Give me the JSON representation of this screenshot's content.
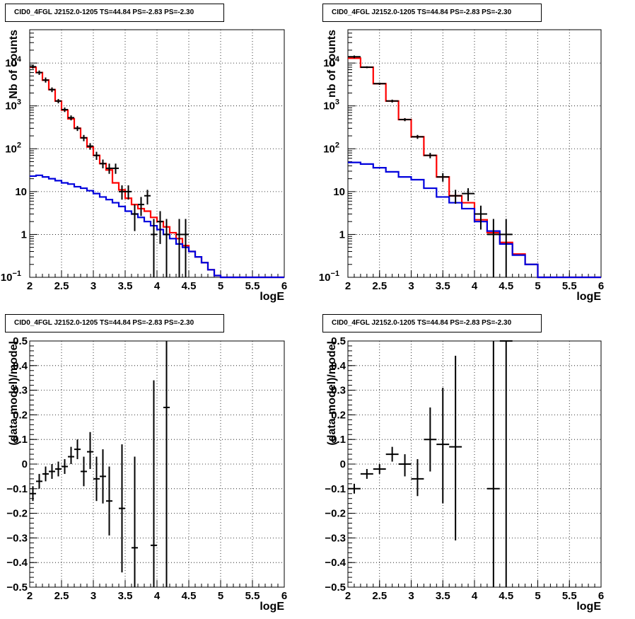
{
  "chart_data": [
    {
      "type": "histogram",
      "title": "CID0_4FGL J2152.0-1205 TS=44.84 PS=-2.83 PS=-2.30",
      "xlabel": "logE",
      "ylabel": "Nb of counts",
      "xlim": [
        2,
        6
      ],
      "ylim": [
        0.1,
        60000
      ],
      "yscale": "log",
      "grid": true,
      "x_ticks": [
        "2",
        "2.5",
        "3",
        "3.5",
        "4",
        "4.5",
        "5",
        "5.5",
        "6"
      ],
      "y_ticks": [
        {
          "value": 0.1,
          "label": "10",
          "exp": "−1"
        },
        {
          "value": 1,
          "label": "1"
        },
        {
          "value": 10,
          "label": "10"
        },
        {
          "value": 100,
          "label": "10",
          "exp": "2"
        },
        {
          "value": 1000,
          "label": "10",
          "exp": "3"
        },
        {
          "value": 10000,
          "label": "10",
          "exp": "4"
        }
      ],
      "bin_edges": [
        2.0,
        2.1,
        2.2,
        2.3,
        2.4,
        2.5,
        2.6,
        2.7,
        2.8,
        2.9,
        3.0,
        3.1,
        3.2,
        3.3,
        3.4,
        3.5,
        3.6,
        3.7,
        3.8,
        3.9,
        4.0,
        4.1,
        4.2,
        4.3,
        4.4,
        4.5,
        4.6,
        4.7,
        4.8,
        4.9,
        5.0,
        5.1,
        5.2,
        5.3,
        5.4,
        5.5,
        5.6,
        5.7,
        5.8,
        5.9,
        6.0
      ],
      "series": [
        {
          "name": "",
          "color": "#ff0000",
          "style": "step",
          "values": [
            8000,
            6000,
            4000,
            2400,
            1300,
            800,
            500,
            300,
            180,
            110,
            70,
            45,
            32,
            16,
            11,
            7,
            5,
            4,
            3.5,
            2.5,
            2,
            1.5,
            1.1,
            0.8,
            0.55,
            0.4,
            0.3,
            0.22,
            0.15,
            0.11,
            0.08,
            0.08,
            0.08,
            0.08,
            0.08,
            0.08,
            0.08,
            0.08,
            0.08,
            0.08
          ]
        },
        {
          "name": "",
          "color": "#0000dd",
          "style": "step",
          "values": [
            23,
            24,
            22,
            20,
            18,
            16,
            15,
            13,
            12,
            10.5,
            9,
            7.5,
            6.5,
            5.5,
            4.5,
            3.5,
            3,
            2.5,
            2,
            1.6,
            1.3,
            1.0,
            0.8,
            0.6,
            0.5,
            0.4,
            0.3,
            0.22,
            0.15,
            0.11,
            0.08,
            0.08,
            0.08,
            0.08,
            0.08,
            0.08,
            0.08,
            0.08,
            0.08,
            0.08
          ]
        },
        {
          "name": "",
          "color": "#000000",
          "style": "points",
          "points": [
            {
              "x": 2.05,
              "y": 8200,
              "lo": 7400,
              "hi": 9000
            },
            {
              "x": 2.15,
              "y": 6000,
              "lo": 5300,
              "hi": 6700
            },
            {
              "x": 2.25,
              "y": 4000,
              "lo": 3500,
              "hi": 4600
            },
            {
              "x": 2.35,
              "y": 2400,
              "lo": 2100,
              "hi": 2700
            },
            {
              "x": 2.45,
              "y": 1300,
              "lo": 1150,
              "hi": 1450
            },
            {
              "x": 2.55,
              "y": 820,
              "lo": 720,
              "hi": 920
            },
            {
              "x": 2.65,
              "y": 530,
              "lo": 460,
              "hi": 600
            },
            {
              "x": 2.75,
              "y": 300,
              "lo": 260,
              "hi": 340
            },
            {
              "x": 2.85,
              "y": 180,
              "lo": 150,
              "hi": 210
            },
            {
              "x": 2.95,
              "y": 115,
              "lo": 95,
              "hi": 135
            },
            {
              "x": 3.05,
              "y": 70,
              "lo": 55,
              "hi": 85
            },
            {
              "x": 3.15,
              "y": 45,
              "lo": 35,
              "hi": 56
            },
            {
              "x": 3.25,
              "y": 35,
              "lo": 26,
              "hi": 45
            },
            {
              "x": 3.35,
              "y": 35,
              "lo": 26,
              "hi": 45
            },
            {
              "x": 3.45,
              "y": 10,
              "lo": 6.5,
              "hi": 14
            },
            {
              "x": 3.55,
              "y": 10,
              "lo": 6.5,
              "hi": 14
            },
            {
              "x": 3.65,
              "y": 3,
              "lo": 1.2,
              "hi": 5
            },
            {
              "x": 3.75,
              "y": 5,
              "lo": 2.7,
              "hi": 7.5
            },
            {
              "x": 3.85,
              "y": 8,
              "lo": 5,
              "hi": 11
            },
            {
              "x": 3.95,
              "y": 1,
              "lo": 0.1,
              "hi": 2.3
            },
            {
              "x": 4.05,
              "y": 2,
              "lo": 0.6,
              "hi": 3.5
            },
            {
              "x": 4.15,
              "y": 1,
              "lo": 0.1,
              "hi": 2.3
            },
            {
              "x": 4.35,
              "y": 1,
              "lo": 0.1,
              "hi": 2.3
            },
            {
              "x": 4.45,
              "y": 1,
              "lo": 0.1,
              "hi": 2.3
            }
          ]
        }
      ]
    },
    {
      "type": "histogram",
      "title": "CID0_4FGL J2152.0-1205 TS=44.84 PS=-2.83 PS=-2.30",
      "xlabel": "logE",
      "ylabel": "nb of counts",
      "xlim": [
        2,
        6
      ],
      "ylim": [
        0.1,
        60000
      ],
      "yscale": "log",
      "grid": true,
      "x_ticks": [
        "2",
        "2.5",
        "3",
        "3.5",
        "4",
        "4.5",
        "5",
        "5.5",
        "6"
      ],
      "y_ticks": [
        {
          "value": 0.1,
          "label": "10",
          "exp": "−1"
        },
        {
          "value": 1,
          "label": "1"
        },
        {
          "value": 10,
          "label": "10"
        },
        {
          "value": 100,
          "label": "10",
          "exp": "2"
        },
        {
          "value": 1000,
          "label": "10",
          "exp": "3"
        },
        {
          "value": 10000,
          "label": "10",
          "exp": "4"
        }
      ],
      "bin_edges": [
        2.0,
        2.2,
        2.4,
        2.6,
        2.8,
        3.0,
        3.2,
        3.4,
        3.6,
        3.8,
        4.0,
        4.2,
        4.4,
        4.6,
        4.8,
        5.0,
        5.2,
        5.4,
        5.6,
        5.8,
        6.0
      ],
      "series": [
        {
          "name": "",
          "color": "#ff0000",
          "style": "step",
          "values": [
            13000,
            8000,
            3300,
            1300,
            480,
            190,
            70,
            22,
            8,
            5.5,
            2.2,
            1.1,
            0.65,
            0.35,
            0.2,
            0.09,
            0.09,
            0.09,
            0.09,
            0.09
          ]
        },
        {
          "name": "",
          "color": "#0000dd",
          "style": "step",
          "values": [
            48,
            44,
            36,
            29,
            22,
            19,
            12,
            7.5,
            5.5,
            4,
            2,
            1.2,
            0.6,
            0.33,
            0.2,
            0.09,
            0.09,
            0.09,
            0.09,
            0.09
          ]
        },
        {
          "name": "",
          "color": "#000000",
          "style": "points",
          "points": [
            {
              "x": 2.1,
              "y": 14000,
              "lo": 13000,
              "hi": 15000
            },
            {
              "x": 2.3,
              "y": 8000,
              "lo": 7600,
              "hi": 8400
            },
            {
              "x": 2.5,
              "y": 3300,
              "lo": 3100,
              "hi": 3500
            },
            {
              "x": 2.7,
              "y": 1300,
              "lo": 1200,
              "hi": 1400
            },
            {
              "x": 2.9,
              "y": 480,
              "lo": 440,
              "hi": 520
            },
            {
              "x": 3.1,
              "y": 190,
              "lo": 170,
              "hi": 210
            },
            {
              "x": 3.3,
              "y": 70,
              "lo": 60,
              "hi": 80
            },
            {
              "x": 3.5,
              "y": 22,
              "lo": 17,
              "hi": 27
            },
            {
              "x": 3.7,
              "y": 8,
              "lo": 5.2,
              "hi": 11
            },
            {
              "x": 3.9,
              "y": 9,
              "lo": 6,
              "hi": 12
            },
            {
              "x": 4.1,
              "y": 3,
              "lo": 1.3,
              "hi": 4.7
            },
            {
              "x": 4.3,
              "y": 1,
              "lo": 0.1,
              "hi": 2.3
            },
            {
              "x": 4.5,
              "y": 1,
              "lo": 0.1,
              "hi": 2.3
            }
          ]
        }
      ]
    },
    {
      "type": "scatter",
      "title": "CID0_4FGL J2152.0-1205 TS=44.84 PS=-2.83 PS=-2.30",
      "xlabel": "logE",
      "ylabel": "(data-model)/model",
      "xlim": [
        2,
        6
      ],
      "ylim": [
        -0.5,
        0.5
      ],
      "yscale": "linear",
      "grid": true,
      "x_ticks": [
        "2",
        "2.5",
        "3",
        "3.5",
        "4",
        "4.5",
        "5",
        "5.5",
        "6"
      ],
      "y_ticks": [
        "−0.5",
        "−0.4",
        "−0.3",
        "−0.2",
        "−0.1",
        "0",
        "0.1",
        "0.2",
        "0.3",
        "0.4",
        "0.5"
      ],
      "xerr": 0.05,
      "points": [
        {
          "x": 2.05,
          "y": -0.12,
          "lo": -0.15,
          "hi": -0.09
        },
        {
          "x": 2.15,
          "y": -0.07,
          "lo": -0.1,
          "hi": -0.04
        },
        {
          "x": 2.25,
          "y": -0.04,
          "lo": -0.07,
          "hi": -0.01
        },
        {
          "x": 2.35,
          "y": -0.03,
          "lo": -0.06,
          "hi": 0.0
        },
        {
          "x": 2.45,
          "y": -0.02,
          "lo": -0.05,
          "hi": 0.01
        },
        {
          "x": 2.55,
          "y": -0.01,
          "lo": -0.04,
          "hi": 0.02
        },
        {
          "x": 2.65,
          "y": 0.03,
          "lo": 0.0,
          "hi": 0.07
        },
        {
          "x": 2.75,
          "y": 0.06,
          "lo": 0.02,
          "hi": 0.1
        },
        {
          "x": 2.85,
          "y": -0.03,
          "lo": -0.09,
          "hi": 0.03
        },
        {
          "x": 2.95,
          "y": 0.05,
          "lo": -0.02,
          "hi": 0.13
        },
        {
          "x": 3.05,
          "y": -0.06,
          "lo": -0.15,
          "hi": 0.03
        },
        {
          "x": 3.15,
          "y": -0.05,
          "lo": -0.16,
          "hi": 0.06
        },
        {
          "x": 3.25,
          "y": -0.15,
          "lo": -0.29,
          "hi": -0.01
        },
        {
          "x": 3.45,
          "y": -0.18,
          "lo": -0.44,
          "hi": 0.08
        },
        {
          "x": 3.65,
          "y": -0.34,
          "lo": -0.72,
          "hi": 0.03
        },
        {
          "x": 3.95,
          "y": -0.33,
          "lo": -0.9,
          "hi": 0.34
        },
        {
          "x": 4.15,
          "y": 0.23,
          "lo": -0.9,
          "hi": 1.0
        }
      ]
    },
    {
      "type": "scatter",
      "title": "CID0_4FGL J2152.0-1205 TS=44.84 PS=-2.83 PS=-2.30",
      "xlabel": "logE",
      "ylabel": "(data-model)/model",
      "xlim": [
        2,
        6
      ],
      "ylim": [
        -0.5,
        0.5
      ],
      "yscale": "linear",
      "grid": true,
      "x_ticks": [
        "2",
        "2.5",
        "3",
        "3.5",
        "4",
        "4.5",
        "5",
        "5.5",
        "6"
      ],
      "y_ticks": [
        "−0.5",
        "−0.4",
        "−0.3",
        "−0.2",
        "−0.1",
        "0",
        "0.1",
        "0.2",
        "0.3",
        "0.4",
        "0.5"
      ],
      "xerr": 0.1,
      "points": [
        {
          "x": 2.1,
          "y": -0.1,
          "lo": -0.12,
          "hi": -0.08
        },
        {
          "x": 2.3,
          "y": -0.04,
          "lo": -0.06,
          "hi": -0.02
        },
        {
          "x": 2.5,
          "y": -0.02,
          "lo": -0.04,
          "hi": 0.0
        },
        {
          "x": 2.7,
          "y": 0.04,
          "lo": 0.01,
          "hi": 0.07
        },
        {
          "x": 2.9,
          "y": 0.0,
          "lo": -0.05,
          "hi": 0.04
        },
        {
          "x": 3.1,
          "y": -0.06,
          "lo": -0.13,
          "hi": 0.02
        },
        {
          "x": 3.3,
          "y": 0.1,
          "lo": -0.03,
          "hi": 0.23
        },
        {
          "x": 3.5,
          "y": 0.08,
          "lo": -0.16,
          "hi": 0.31
        },
        {
          "x": 3.7,
          "y": 0.07,
          "lo": -0.31,
          "hi": 0.44
        },
        {
          "x": 4.3,
          "y": -0.1,
          "lo": -0.9,
          "hi": 1.0
        },
        {
          "x": 4.5,
          "y": 0.5,
          "lo": -0.9,
          "hi": 1.0
        }
      ]
    }
  ]
}
